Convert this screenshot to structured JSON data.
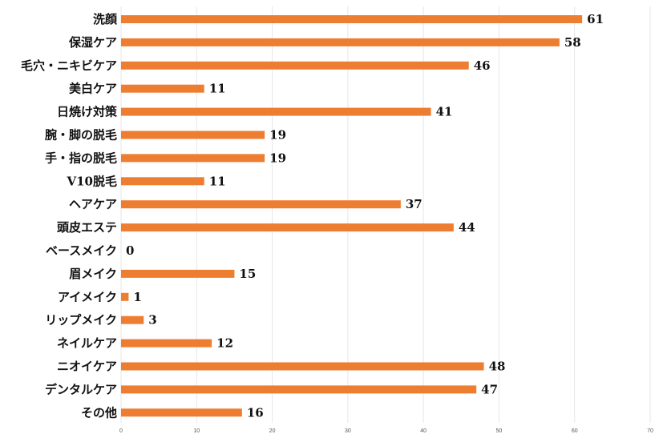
{
  "chart_data": {
    "type": "bar",
    "orientation": "horizontal",
    "categories": [
      "洗顔",
      "保湿ケア",
      "毛穴・ニキビケア",
      "美白ケア",
      "日焼け対策",
      "腕・脚の脱毛",
      "手・指の脱毛",
      "V10脱毛",
      "ヘアケア",
      "頭皮エステ",
      "ベースメイク",
      "眉メイク",
      "アイメイク",
      "リップメイク",
      "ネイルケア",
      "ニオイケア",
      "デンタルケア",
      "その他"
    ],
    "values": [
      61,
      58,
      46,
      11,
      41,
      19,
      19,
      11,
      37,
      44,
      0,
      15,
      1,
      3,
      12,
      48,
      47,
      16
    ],
    "xlim": [
      0,
      70
    ],
    "x_ticks": [
      0,
      10,
      20,
      30,
      40,
      50,
      60,
      70
    ],
    "grid": true,
    "bar_color": "#ed7d31",
    "grid_color": "#e6e6e6",
    "data_labels": true
  }
}
